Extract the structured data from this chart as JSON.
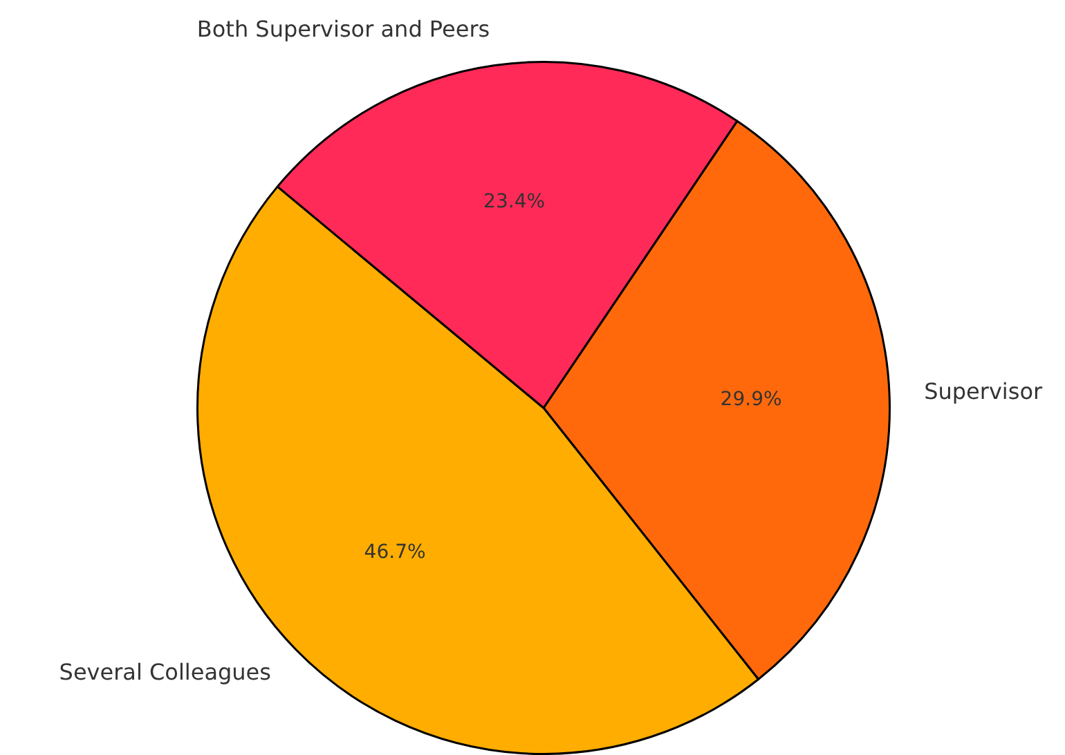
{
  "chart_data": {
    "type": "pie",
    "categories": [
      "Supervisor",
      "Several Colleagues",
      "Both Supervisor and Peers"
    ],
    "values": [
      29.9,
      46.7,
      23.4
    ],
    "colors": [
      "#ff690b",
      "#ffad00",
      "#ff2a57"
    ],
    "value_labels": [
      "29.9%",
      "46.7%",
      "23.4%"
    ],
    "legend": false
  }
}
